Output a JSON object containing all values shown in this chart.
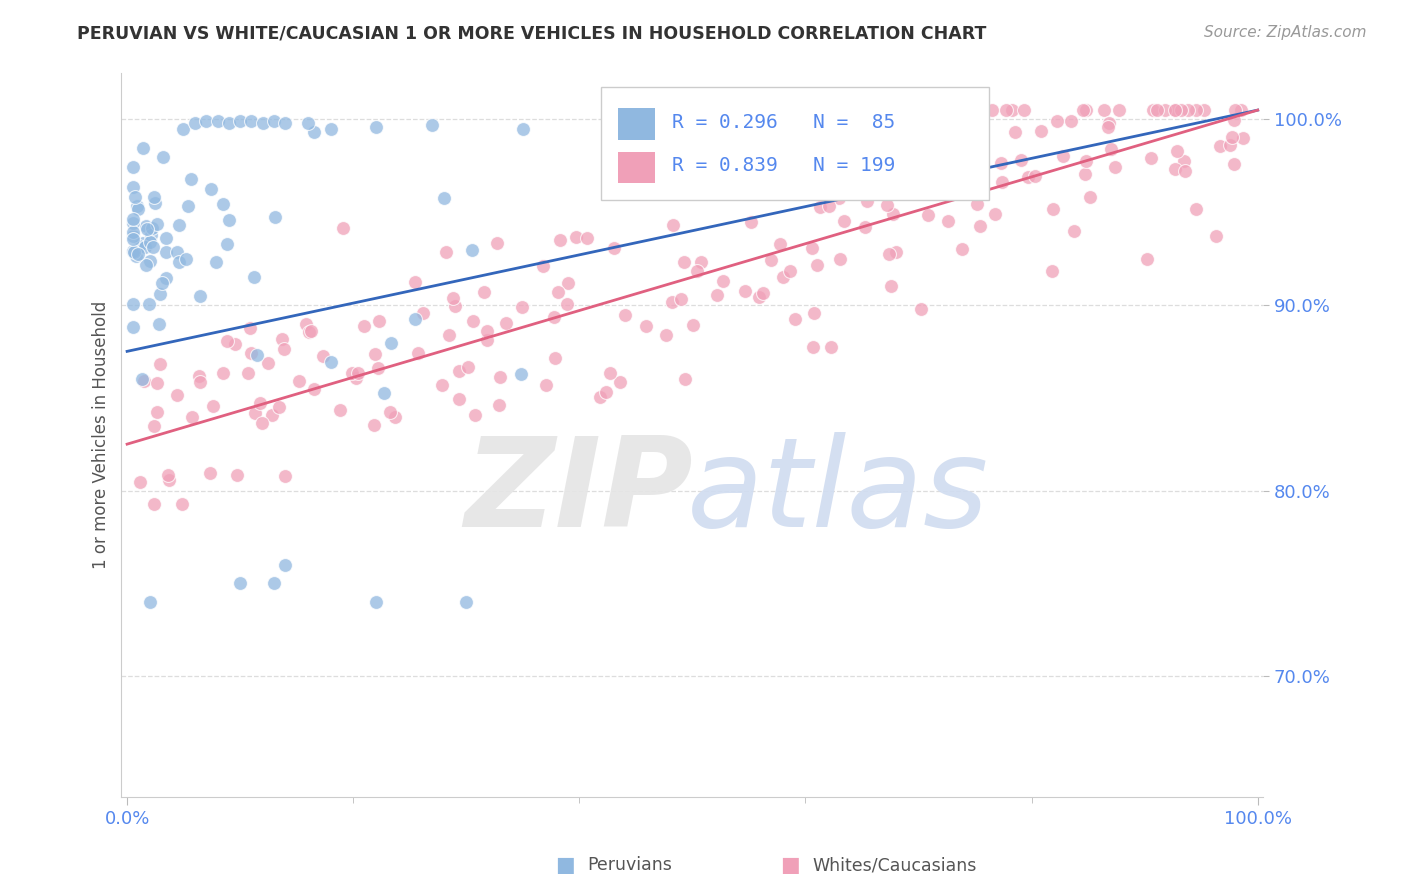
{
  "title": "PERUVIAN VS WHITE/CAUCASIAN 1 OR MORE VEHICLES IN HOUSEHOLD CORRELATION CHART",
  "source": "Source: ZipAtlas.com",
  "ylabel": "1 or more Vehicles in Household",
  "ytick_labels": [
    "70.0%",
    "80.0%",
    "90.0%",
    "100.0%"
  ],
  "ytick_values": [
    0.7,
    0.8,
    0.9,
    1.0
  ],
  "xlim": [
    -0.005,
    1.005
  ],
  "ylim": [
    0.635,
    1.025
  ],
  "blue_R": 0.296,
  "blue_N": 85,
  "pink_R": 0.839,
  "pink_N": 199,
  "blue_color": "#90B8E0",
  "pink_color": "#F0A0B8",
  "blue_line_color": "#3366BB",
  "pink_line_color": "#E06080",
  "blue_line_x0": 0.0,
  "blue_line_y0": 0.875,
  "blue_line_x1": 1.0,
  "blue_line_y1": 1.005,
  "pink_line_x0": 0.0,
  "pink_line_y0": 0.825,
  "pink_line_x1": 1.0,
  "pink_line_y1": 1.005,
  "legend_label_blue": "Peruvians",
  "legend_label_pink": "Whites/Caucasians",
  "background_color": "#ffffff",
  "grid_color": "#dddddd",
  "title_color": "#333333",
  "tick_color": "#5588EE",
  "source_color": "#999999"
}
